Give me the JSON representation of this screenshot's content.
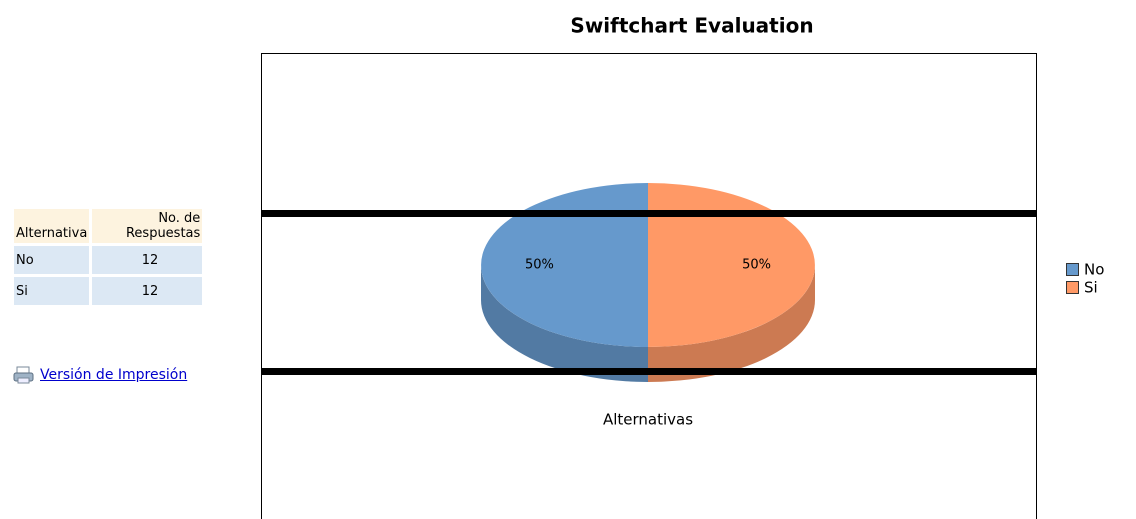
{
  "table": {
    "header": [
      "Alternativa",
      "No. de Respuestas"
    ],
    "rows": [
      [
        "No",
        12
      ],
      [
        "Si",
        12
      ]
    ]
  },
  "link": "Versión de Impresión",
  "chart_data": {
    "type": "pie",
    "title": "Swiftchart Evaluation",
    "xlabel": "Alternativas",
    "categories": [
      "No",
      "Si"
    ],
    "values": [
      50,
      50
    ],
    "value_labels": [
      "50%",
      "50%"
    ],
    "colors": [
      "#6699cc",
      "#ff9966"
    ],
    "legend": "right"
  }
}
